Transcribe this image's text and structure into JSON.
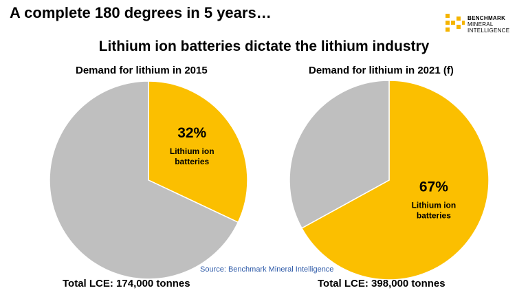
{
  "headline": "A complete 180 degrees in 5 years…",
  "logo": {
    "line1": "BENCHMARK",
    "line2": "MINERAL",
    "line3": "INTELLIGENCE",
    "color": "#f5b400"
  },
  "subtitle": "Lithium ion batteries dictate the lithium industry",
  "source": "Source: Benchmark Mineral Intelligence",
  "colors": {
    "highlight": "#fbbf00",
    "other": "#bfbfbf"
  },
  "chart_data": [
    {
      "type": "pie",
      "title": "Demand for lithium in 2015",
      "total_label": "Total LCE: 174,000 tonnes",
      "slices": [
        {
          "label_pct": "32%",
          "label_line1": "Lithium ion",
          "label_line2": "batteries",
          "value": 32,
          "color": "#fbbf00"
        },
        {
          "value": 68,
          "color": "#bfbfbf"
        }
      ]
    },
    {
      "type": "pie",
      "title": "Demand for lithium in 2021 (f)",
      "total_label": "Total LCE: 398,000 tonnes",
      "slices": [
        {
          "label_pct": "67%",
          "label_line1": "Lithium ion",
          "label_line2": "batteries",
          "value": 67,
          "color": "#fbbf00"
        },
        {
          "value": 33,
          "color": "#bfbfbf"
        }
      ]
    }
  ]
}
